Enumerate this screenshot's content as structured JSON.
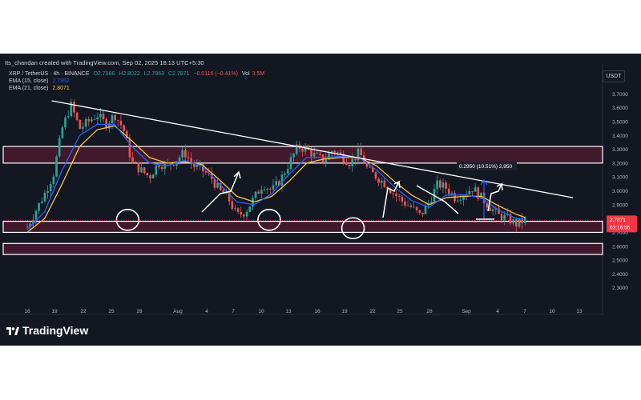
{
  "header": {
    "credit": "Its_chandan created with TradingView.com, Sep 02, 2025 18:13 UTC+5:30",
    "symbol": "XRP / TetherUS · 4h · BINANCE",
    "ohlc_open": "O2.7986",
    "ohlc_high": "H2.8022",
    "ohlc_low": "L2.7863",
    "ohlc_close": "C2.7871",
    "change": "−0.0116 (−0.41%)",
    "volume_label": "Vol",
    "volume_value": "3.5M",
    "ema15_label": "EMA (15, close)",
    "ema15_value": "2.7952",
    "ema21_label": "EMA (21, close)",
    "ema21_value": "2.8071"
  },
  "currency_button": "USDT",
  "logo_text": "TradingView",
  "colors": {
    "background": "#131722",
    "candle_up": "#26a69a",
    "candle_down": "#ef5350",
    "ema15": "#2962ff",
    "ema21": "#f5c242",
    "zone_fill": "#4a1a2e",
    "price_tag": "#f23645"
  },
  "chart_data": {
    "type": "candlestick",
    "interval": "4h",
    "ylim": [
      2.2,
      3.8
    ],
    "y_ticks": [
      "3.7000",
      "3.6000",
      "3.5000",
      "3.4000",
      "3.3000",
      "3.2000",
      "3.1000",
      "3.0000",
      "2.9000",
      "2.8000",
      "2.7000",
      "2.6000",
      "2.5000",
      "2.4000",
      "2.3000"
    ],
    "x_ticks": [
      "16",
      "19",
      "22",
      "25",
      "28",
      "Aug",
      "4",
      "7",
      "10",
      "13",
      "16",
      "19",
      "22",
      "25",
      "28",
      "Sep",
      "4",
      "7",
      "10",
      "13"
    ],
    "close_path": [
      [
        0,
        2.74
      ],
      [
        1,
        2.86
      ],
      [
        2,
        2.98
      ],
      [
        3,
        3.12
      ],
      [
        4,
        3.45
      ],
      [
        5,
        3.62
      ],
      [
        6,
        3.45
      ],
      [
        7,
        3.5
      ],
      [
        8,
        3.55
      ],
      [
        9,
        3.48
      ],
      [
        10,
        3.55
      ],
      [
        11,
        3.45
      ],
      [
        12,
        3.2
      ],
      [
        13,
        3.15
      ],
      [
        14,
        3.1
      ],
      [
        15,
        3.2
      ],
      [
        16,
        3.18
      ],
      [
        17,
        3.22
      ],
      [
        18,
        3.28
      ],
      [
        19,
        3.18
      ],
      [
        20,
        3.15
      ],
      [
        21,
        3.1
      ],
      [
        22,
        3.0
      ],
      [
        23,
        2.95
      ],
      [
        24,
        2.82
      ],
      [
        25,
        2.85
      ],
      [
        26,
        2.95
      ],
      [
        27,
        3.05
      ],
      [
        28,
        3.0
      ],
      [
        29,
        3.08
      ],
      [
        30,
        3.2
      ],
      [
        31,
        3.32
      ],
      [
        32,
        3.3
      ],
      [
        33,
        3.25
      ],
      [
        34,
        3.22
      ],
      [
        35,
        3.3
      ],
      [
        36,
        3.25
      ],
      [
        37,
        3.2
      ],
      [
        38,
        3.28
      ],
      [
        39,
        3.15
      ],
      [
        40,
        3.1
      ],
      [
        41,
        3.05
      ],
      [
        42,
        2.98
      ],
      [
        43,
        2.92
      ],
      [
        44,
        2.88
      ],
      [
        45,
        2.82
      ],
      [
        46,
        2.92
      ],
      [
        47,
        3.05
      ],
      [
        48,
        3.02
      ],
      [
        49,
        2.95
      ],
      [
        50,
        2.98
      ],
      [
        51,
        3.02
      ],
      [
        52,
        2.95
      ],
      [
        53,
        2.88
      ],
      [
        54,
        2.82
      ],
      [
        55,
        2.8
      ],
      [
        56,
        2.76
      ],
      [
        57,
        2.79
      ]
    ],
    "ema15_path": [
      [
        0,
        2.72
      ],
      [
        2,
        2.85
      ],
      [
        4,
        3.15
      ],
      [
        6,
        3.4
      ],
      [
        8,
        3.48
      ],
      [
        10,
        3.48
      ],
      [
        12,
        3.32
      ],
      [
        14,
        3.2
      ],
      [
        16,
        3.18
      ],
      [
        18,
        3.22
      ],
      [
        20,
        3.18
      ],
      [
        22,
        3.05
      ],
      [
        24,
        2.92
      ],
      [
        26,
        2.9
      ],
      [
        28,
        2.98
      ],
      [
        30,
        3.12
      ],
      [
        32,
        3.24
      ],
      [
        34,
        3.24
      ],
      [
        36,
        3.25
      ],
      [
        38,
        3.24
      ],
      [
        40,
        3.15
      ],
      [
        42,
        3.03
      ],
      [
        44,
        2.93
      ],
      [
        46,
        2.88
      ],
      [
        48,
        2.97
      ],
      [
        50,
        2.97
      ],
      [
        52,
        2.95
      ],
      [
        54,
        2.86
      ],
      [
        56,
        2.8
      ],
      [
        57,
        2.7952
      ]
    ],
    "ema21_path": [
      [
        0,
        2.7
      ],
      [
        2,
        2.8
      ],
      [
        4,
        3.05
      ],
      [
        6,
        3.32
      ],
      [
        8,
        3.44
      ],
      [
        10,
        3.47
      ],
      [
        12,
        3.36
      ],
      [
        14,
        3.24
      ],
      [
        16,
        3.2
      ],
      [
        18,
        3.21
      ],
      [
        20,
        3.19
      ],
      [
        22,
        3.08
      ],
      [
        24,
        2.96
      ],
      [
        26,
        2.92
      ],
      [
        28,
        2.96
      ],
      [
        30,
        3.07
      ],
      [
        32,
        3.2
      ],
      [
        34,
        3.23
      ],
      [
        36,
        3.24
      ],
      [
        38,
        3.24
      ],
      [
        40,
        3.18
      ],
      [
        42,
        3.07
      ],
      [
        44,
        2.97
      ],
      [
        46,
        2.9
      ],
      [
        48,
        2.95
      ],
      [
        50,
        2.96
      ],
      [
        52,
        2.96
      ],
      [
        54,
        2.89
      ],
      [
        56,
        2.83
      ],
      [
        57,
        2.8071
      ]
    ],
    "resistance_zone": [
      3.2,
      3.32
    ],
    "support_zone_upper": [
      2.7,
      2.78
    ],
    "support_zone_lower": [
      2.54,
      2.62
    ],
    "trendline": [
      [
        2.8,
        3.65
      ],
      [
        62.5,
        2.95
      ]
    ],
    "circles": [
      [
        11.5,
        2.79
      ],
      [
        27.7,
        2.79
      ],
      [
        37.3,
        2.73
      ]
    ],
    "measure_label": "0.2950 (10.51%) 2,950",
    "last_price": "2.7871",
    "countdown": "03:16:55"
  }
}
